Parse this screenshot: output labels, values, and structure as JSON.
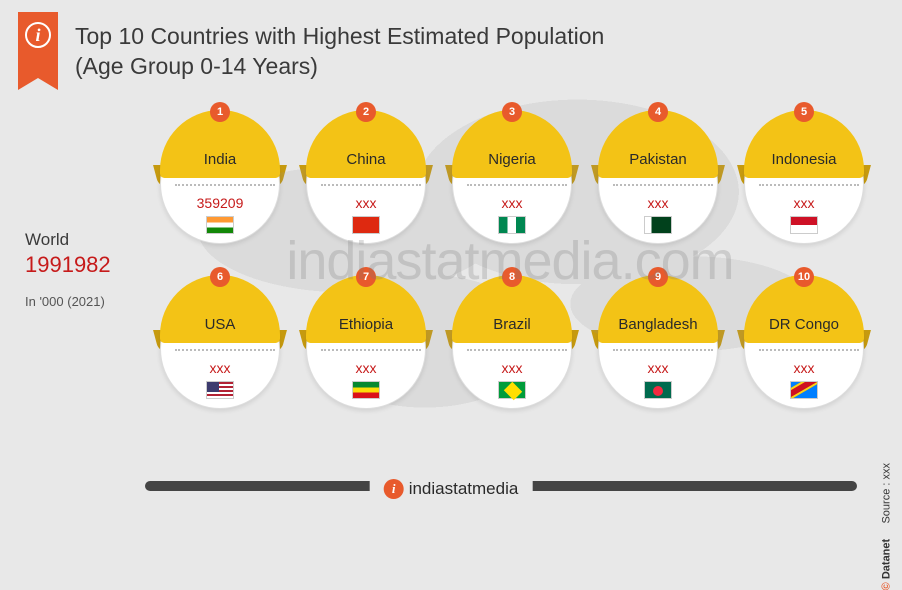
{
  "header": {
    "title_line1": "Top 10 Countries with Highest Estimated Population",
    "title_line2": "(Age Group 0-14 Years)"
  },
  "world": {
    "label": "World",
    "value": "1991982",
    "unit": "In '000  (2021)"
  },
  "countries": [
    {
      "rank": "1",
      "name": "India",
      "value": "359209",
      "flag": "flag-india"
    },
    {
      "rank": "2",
      "name": "China",
      "value": "xxx",
      "flag": "flag-china"
    },
    {
      "rank": "3",
      "name": "Nigeria",
      "value": "xxx",
      "flag": "flag-nigeria"
    },
    {
      "rank": "4",
      "name": "Pakistan",
      "value": "xxx",
      "flag": "flag-pakistan"
    },
    {
      "rank": "5",
      "name": "Indonesia",
      "value": "xxx",
      "flag": "flag-indonesia"
    },
    {
      "rank": "6",
      "name": "USA",
      "value": "xxx",
      "flag": "flag-usa"
    },
    {
      "rank": "7",
      "name": "Ethiopia",
      "value": "xxx",
      "flag": "flag-ethiopia"
    },
    {
      "rank": "8",
      "name": "Brazil",
      "value": "xxx",
      "flag": "flag-brazil"
    },
    {
      "rank": "9",
      "name": "Bangladesh",
      "value": "xxx",
      "flag": "flag-bangladesh"
    },
    {
      "rank": "10",
      "name": "DR Congo",
      "value": "xxx",
      "flag": "flag-drcongo"
    }
  ],
  "watermark": "indiastatmedia.com",
  "footer": {
    "logo_text": "indiastatmedia"
  },
  "side": {
    "copyright": "©",
    "datanet": "Datanet",
    "source": "Source : xxx"
  },
  "colors": {
    "accent_orange": "#e85a2c",
    "arc_yellow": "#f3c316",
    "arc_shadow": "#c69a0f",
    "value_red": "#c61a1a",
    "background": "#e8e8e8",
    "text_dark": "#3a3a3a"
  }
}
